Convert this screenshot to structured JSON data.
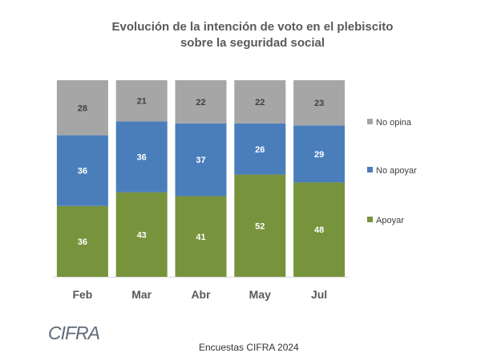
{
  "chart_data": {
    "type": "bar",
    "stacked": true,
    "title_lines": [
      "Evolución de la intención de voto en el plebiscito",
      "sobre la seguridad social"
    ],
    "categories": [
      "Feb",
      "Mar",
      "Abr",
      "May",
      "Jul"
    ],
    "series": [
      {
        "name": "Apoyar",
        "color": "#77933c",
        "values": [
          36,
          43,
          41,
          52,
          48
        ]
      },
      {
        "name": "No apoyar",
        "color": "#4a7ebb",
        "values": [
          36,
          36,
          37,
          26,
          29
        ]
      },
      {
        "name": "No opina",
        "color": "#a6a6a6",
        "values": [
          28,
          21,
          22,
          22,
          23
        ]
      }
    ],
    "legend_position": "right",
    "legend_order": [
      "No opina",
      "No apoyar",
      "Apoyar"
    ],
    "data_labels": true,
    "grid": false
  },
  "footer": {
    "logo_text": "CIFRA",
    "source": "Encuestas CIFRA 2024"
  }
}
